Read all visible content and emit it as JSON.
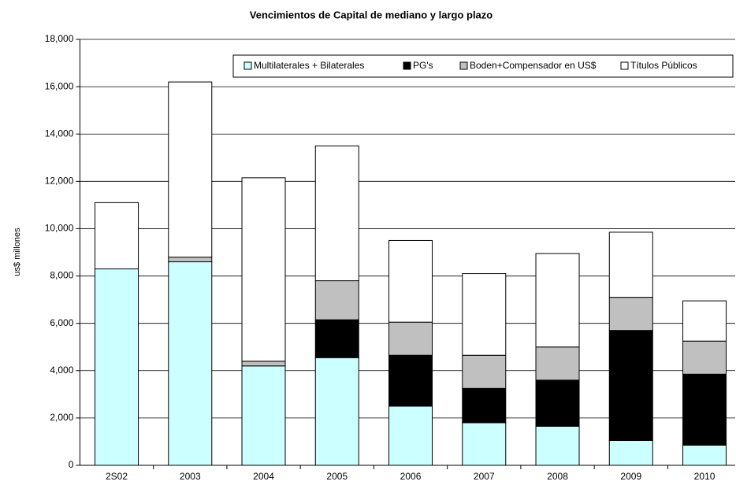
{
  "chart_data": {
    "type": "stacked_bar",
    "title": "Vencimientos de Capital de mediano y largo plazo",
    "y_label": "us$ millones",
    "categories": [
      "2S02",
      "2003",
      "2004",
      "2005",
      "2006",
      "2007",
      "2008",
      "2009",
      "2010"
    ],
    "series": [
      {
        "name": "Multilaterales + Bilaterales",
        "color": "#ccffff",
        "values": [
          8300,
          8600,
          4200,
          4550,
          2500,
          1800,
          1650,
          1050,
          850
        ]
      },
      {
        "name": "PG's",
        "color": "#000000",
        "values": [
          0,
          0,
          0,
          1600,
          2150,
          1450,
          1950,
          4650,
          3000
        ]
      },
      {
        "name": "Boden+Compensador en US$",
        "color": "#c0c0c0",
        "values": [
          0,
          200,
          200,
          1650,
          1400,
          1400,
          1400,
          1400,
          1400
        ]
      },
      {
        "name": "Títulos Públicos",
        "color": "#ffffff",
        "values": [
          2800,
          7400,
          7750,
          5700,
          3450,
          3450,
          3950,
          2750,
          1700
        ]
      }
    ],
    "ylim": [
      0,
      18000
    ],
    "yticks": [
      0,
      {
        "value": 2000,
        "label": "2,000"
      },
      {
        "value": 4000,
        "label": "4,000"
      },
      {
        "value": 6000,
        "label": "6,000"
      },
      {
        "value": 8000,
        "label": "8,000"
      },
      {
        "value": 10000,
        "label": "10,000"
      },
      {
        "value": 12000,
        "label": "12,000"
      },
      {
        "value": 14000,
        "label": "14,000"
      },
      {
        "value": 16000,
        "label": "16,000"
      },
      {
        "value": 18000,
        "label": "18,000"
      }
    ],
    "grid": true,
    "legend": "top-right"
  }
}
